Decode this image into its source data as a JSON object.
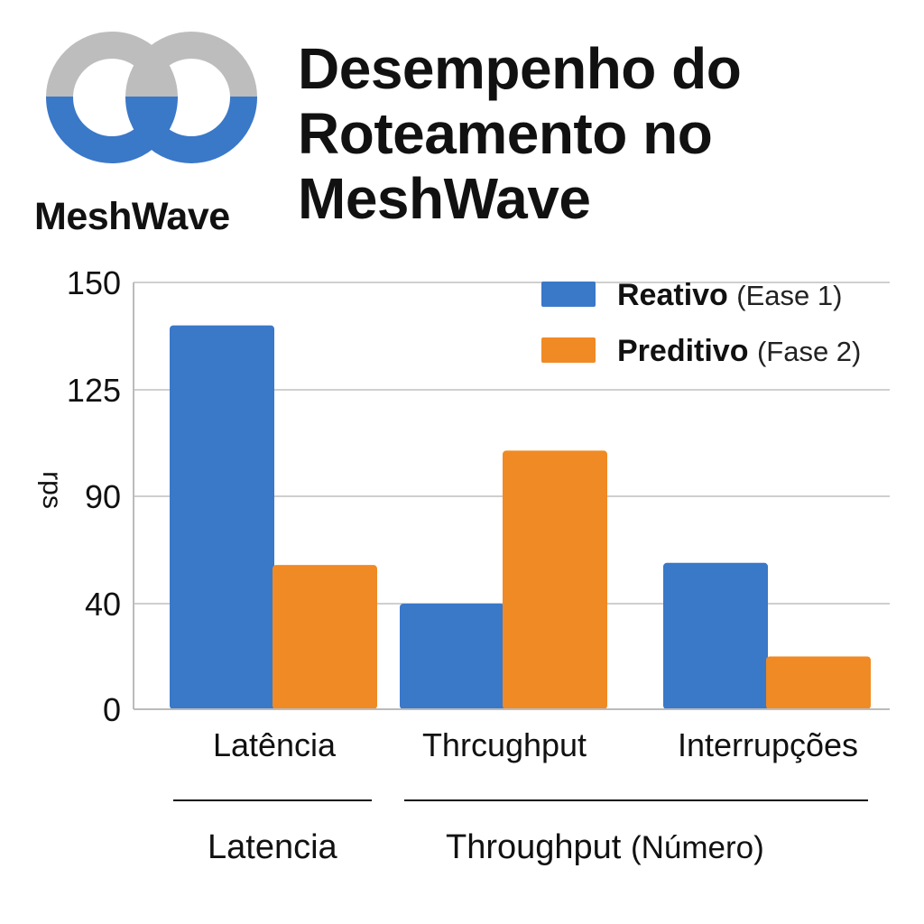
{
  "logo": {
    "wordmark": "MeshWave",
    "colors": {
      "top": "#BDBDBD",
      "bottom": "#3A78C8"
    }
  },
  "title": {
    "lines": [
      "Desempenho do",
      "Roteamento no",
      "MeshWave"
    ]
  },
  "legend": {
    "items": [
      {
        "name": "Reativo",
        "phase": "(Ease 1)",
        "color": "#3A78C8"
      },
      {
        "name": "Preditivo",
        "phase": "(Fase 2)",
        "color": "#F08A24"
      }
    ]
  },
  "chart_data": {
    "type": "bar",
    "categories": [
      "Latência",
      "Thrcughput",
      "Interrupções"
    ],
    "series": [
      {
        "name": "Reativo (Ease 1)",
        "values": [
          140,
          40,
          59
        ],
        "color": "#3A78C8"
      },
      {
        "name": "Preditivo (Fase 2)",
        "values": [
          58,
          105,
          20
        ],
        "color": "#F08A24"
      }
    ],
    "yticks": [
      "150",
      "125",
      "90",
      "40",
      "0"
    ],
    "ylabel": "rps",
    "ylim": [
      0,
      150
    ],
    "grid": true,
    "legend_position": "top-right"
  },
  "bottom_labels": {
    "left": "Latencia",
    "right_main": "Throughput",
    "right_sub": "(Número)"
  }
}
